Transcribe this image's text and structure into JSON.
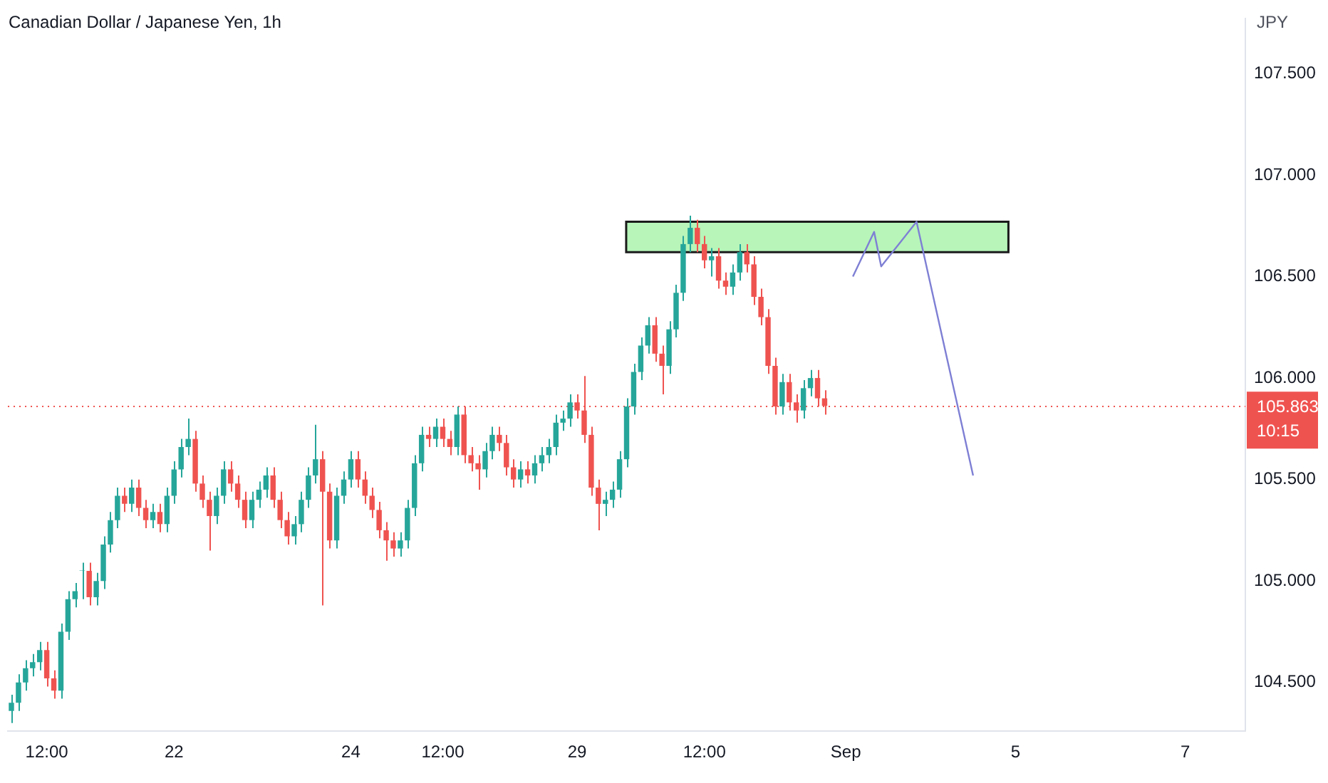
{
  "chart_data": {
    "type": "candlestick",
    "title": "Canadian Dollar / Japanese Yen, 1h",
    "ylabel": "JPY",
    "categories": [
      null,
      null,
      null,
      null,
      null,
      "12:00",
      null,
      null,
      null,
      null,
      null,
      null,
      null,
      null,
      null,
      null,
      null,
      null,
      null,
      null,
      null,
      null,
      null,
      "22",
      null,
      null,
      null,
      null,
      null,
      null,
      null,
      null,
      null,
      null,
      null,
      null,
      null,
      null,
      null,
      null,
      null,
      null,
      null,
      null,
      null,
      null,
      null,
      null,
      "24",
      null,
      null,
      null,
      null,
      null,
      null,
      null,
      null,
      null,
      null,
      null,
      null,
      "12:00",
      null,
      null,
      null,
      null,
      null,
      null,
      null,
      null,
      null,
      null,
      null,
      null,
      null,
      null,
      null,
      null,
      null,
      null,
      "29",
      null,
      null,
      null,
      null,
      null,
      null,
      null,
      null,
      null,
      null,
      null,
      null,
      null,
      null,
      null,
      null,
      null,
      "12:00",
      null,
      null,
      null,
      null,
      null,
      null,
      null,
      null,
      null,
      null,
      null,
      null,
      null,
      null,
      null,
      null,
      null,
      null,
      null,
      "Sep",
      null,
      null,
      null,
      null,
      null,
      null,
      null,
      null,
      null,
      null,
      null,
      null,
      null,
      null,
      null,
      null,
      null,
      null,
      null,
      null,
      null,
      null,
      null,
      "5",
      null,
      null,
      null,
      null,
      null,
      null,
      null,
      null,
      null,
      null,
      null,
      null,
      null,
      null,
      null,
      null,
      null,
      null,
      null,
      null,
      null,
      null,
      null,
      "7",
      null,
      null,
      null,
      null,
      null,
      null,
      null,
      null
    ],
    "ohlc": [
      [
        104.36,
        104.44,
        104.3,
        104.4
      ],
      [
        104.4,
        104.54,
        104.36,
        104.5
      ],
      [
        104.5,
        104.61,
        104.46,
        104.57
      ],
      [
        104.57,
        104.64,
        104.53,
        104.6
      ],
      [
        104.6,
        104.7,
        104.56,
        104.66
      ],
      [
        104.66,
        104.7,
        104.48,
        104.52
      ],
      [
        104.52,
        104.56,
        104.42,
        104.46
      ],
      [
        104.46,
        104.79,
        104.42,
        104.75
      ],
      [
        104.75,
        104.95,
        104.71,
        104.91
      ],
      [
        104.91,
        104.99,
        104.87,
        104.95
      ],
      [
        105.05,
        105.09,
        104.91,
        105.05
      ],
      [
        105.05,
        105.09,
        104.88,
        104.92
      ],
      [
        104.92,
        105.04,
        104.88,
        105.0
      ],
      [
        105.0,
        105.22,
        104.96,
        105.18
      ],
      [
        105.18,
        105.34,
        105.14,
        105.3
      ],
      [
        105.3,
        105.46,
        105.26,
        105.42
      ],
      [
        105.42,
        105.46,
        105.34,
        105.38
      ],
      [
        105.38,
        105.5,
        105.34,
        105.46
      ],
      [
        105.46,
        105.5,
        105.32,
        105.36
      ],
      [
        105.36,
        105.4,
        105.26,
        105.3
      ],
      [
        105.3,
        105.38,
        105.26,
        105.34
      ],
      [
        105.34,
        105.38,
        105.24,
        105.28
      ],
      [
        105.28,
        105.46,
        105.24,
        105.42
      ],
      [
        105.42,
        105.59,
        105.38,
        105.55
      ],
      [
        105.55,
        105.7,
        105.51,
        105.66
      ],
      [
        105.66,
        105.8,
        105.62,
        105.7
      ],
      [
        105.7,
        105.74,
        105.44,
        105.48
      ],
      [
        105.48,
        105.52,
        105.36,
        105.4
      ],
      [
        105.4,
        105.44,
        105.15,
        105.32
      ],
      [
        105.32,
        105.46,
        105.28,
        105.42
      ],
      [
        105.42,
        105.59,
        105.38,
        105.55
      ],
      [
        105.55,
        105.59,
        105.44,
        105.48
      ],
      [
        105.48,
        105.52,
        105.36,
        105.4
      ],
      [
        105.4,
        105.44,
        105.26,
        105.3
      ],
      [
        105.3,
        105.44,
        105.26,
        105.4
      ],
      [
        105.4,
        105.49,
        105.36,
        105.45
      ],
      [
        105.45,
        105.56,
        105.41,
        105.52
      ],
      [
        105.52,
        105.56,
        105.36,
        105.4
      ],
      [
        105.4,
        105.44,
        105.26,
        105.3
      ],
      [
        105.3,
        105.34,
        105.18,
        105.22
      ],
      [
        105.22,
        105.32,
        105.18,
        105.28
      ],
      [
        105.28,
        105.44,
        105.24,
        105.4
      ],
      [
        105.4,
        105.56,
        105.36,
        105.52
      ],
      [
        105.52,
        105.77,
        105.48,
        105.6
      ],
      [
        105.6,
        105.64,
        104.88,
        105.44
      ],
      [
        105.44,
        105.48,
        105.16,
        105.2
      ],
      [
        105.2,
        105.46,
        105.16,
        105.42
      ],
      [
        105.42,
        105.54,
        105.38,
        105.5
      ],
      [
        105.5,
        105.64,
        105.46,
        105.6
      ],
      [
        105.6,
        105.64,
        105.46,
        105.5
      ],
      [
        105.5,
        105.54,
        105.38,
        105.42
      ],
      [
        105.42,
        105.46,
        105.31,
        105.35
      ],
      [
        105.35,
        105.39,
        105.21,
        105.25
      ],
      [
        105.25,
        105.29,
        105.1,
        105.2
      ],
      [
        105.2,
        105.24,
        105.12,
        105.16
      ],
      [
        105.16,
        105.24,
        105.12,
        105.2
      ],
      [
        105.2,
        105.4,
        105.16,
        105.36
      ],
      [
        105.36,
        105.62,
        105.32,
        105.58
      ],
      [
        105.58,
        105.76,
        105.54,
        105.72
      ],
      [
        105.72,
        105.76,
        105.66,
        105.7
      ],
      [
        105.7,
        105.8,
        105.66,
        105.76
      ],
      [
        105.76,
        105.8,
        105.66,
        105.7
      ],
      [
        105.7,
        105.74,
        105.62,
        105.66
      ],
      [
        105.66,
        105.86,
        105.62,
        105.82
      ],
      [
        105.82,
        105.86,
        105.58,
        105.62
      ],
      [
        105.62,
        105.66,
        105.54,
        105.58
      ],
      [
        105.58,
        105.62,
        105.45,
        105.55
      ],
      [
        105.55,
        105.68,
        105.51,
        105.64
      ],
      [
        105.64,
        105.76,
        105.6,
        105.72
      ],
      [
        105.72,
        105.76,
        105.64,
        105.68
      ],
      [
        105.68,
        105.72,
        105.52,
        105.56
      ],
      [
        105.56,
        105.6,
        105.46,
        105.5
      ],
      [
        105.5,
        105.59,
        105.46,
        105.55
      ],
      [
        105.55,
        105.59,
        105.48,
        105.52
      ],
      [
        105.52,
        105.62,
        105.48,
        105.58
      ],
      [
        105.58,
        105.66,
        105.54,
        105.62
      ],
      [
        105.62,
        105.7,
        105.58,
        105.66
      ],
      [
        105.66,
        105.82,
        105.62,
        105.78
      ],
      [
        105.78,
        105.84,
        105.74,
        105.8
      ],
      [
        105.8,
        105.92,
        105.76,
        105.88
      ],
      [
        105.88,
        105.92,
        105.8,
        105.84
      ],
      [
        105.84,
        106.01,
        105.68,
        105.72
      ],
      [
        105.72,
        105.76,
        105.42,
        105.46
      ],
      [
        105.46,
        105.5,
        105.25,
        105.38
      ],
      [
        105.38,
        105.44,
        105.32,
        105.4
      ],
      [
        105.4,
        105.49,
        105.36,
        105.45
      ],
      [
        105.45,
        105.64,
        105.41,
        105.6
      ],
      [
        105.6,
        105.9,
        105.56,
        105.86
      ],
      [
        105.86,
        106.07,
        105.82,
        106.03
      ],
      [
        106.03,
        106.2,
        105.99,
        106.16
      ],
      [
        106.16,
        106.3,
        106.12,
        106.26
      ],
      [
        106.26,
        106.3,
        106.08,
        106.12
      ],
      [
        106.12,
        106.16,
        105.92,
        106.06
      ],
      [
        106.06,
        106.28,
        106.02,
        106.24
      ],
      [
        106.24,
        106.46,
        106.2,
        106.42
      ],
      [
        106.42,
        106.7,
        106.38,
        106.66
      ],
      [
        106.66,
        106.8,
        106.62,
        106.74
      ],
      [
        106.74,
        106.78,
        106.62,
        106.66
      ],
      [
        106.66,
        106.7,
        106.54,
        106.58
      ],
      [
        106.58,
        106.64,
        106.5,
        106.6
      ],
      [
        106.6,
        106.64,
        106.44,
        106.48
      ],
      [
        106.48,
        106.52,
        106.41,
        106.45
      ],
      [
        106.45,
        106.56,
        106.41,
        106.52
      ],
      [
        106.52,
        106.66,
        106.48,
        106.62
      ],
      [
        106.62,
        106.66,
        106.52,
        106.56
      ],
      [
        106.56,
        106.6,
        106.36,
        106.4
      ],
      [
        106.4,
        106.44,
        106.26,
        106.3
      ],
      [
        106.3,
        106.34,
        106.02,
        106.06
      ],
      [
        106.06,
        106.1,
        105.82,
        105.86
      ],
      [
        105.86,
        106.02,
        105.82,
        105.98
      ],
      [
        105.98,
        106.02,
        105.84,
        105.88
      ],
      [
        105.88,
        105.92,
        105.78,
        105.84
      ],
      [
        105.84,
        105.99,
        105.8,
        105.95
      ],
      [
        105.95,
        106.04,
        105.91,
        106.0
      ],
      [
        106.0,
        106.04,
        105.86,
        105.9
      ],
      [
        105.9,
        105.94,
        105.82,
        105.863
      ],
      null,
      null,
      null,
      null,
      null,
      null,
      null,
      null,
      null,
      null,
      null,
      null,
      null,
      null,
      null,
      null,
      null,
      null,
      null,
      null,
      null,
      null,
      null,
      null,
      null,
      null,
      null,
      null,
      null,
      null,
      null,
      null,
      null,
      null,
      null,
      null,
      null,
      null,
      null,
      null,
      null,
      null,
      null,
      null,
      null,
      null,
      null,
      null,
      null,
      null,
      null,
      null,
      null,
      null,
      null,
      null,
      null,
      null,
      null
    ],
    "series": [
      {
        "type": "line",
        "color": "#7e7fd4",
        "values": [
          null,
          null,
          null,
          null,
          null,
          null,
          null,
          null,
          null,
          null,
          null,
          null,
          null,
          null,
          null,
          null,
          null,
          null,
          null,
          null,
          null,
          null,
          null,
          null,
          null,
          null,
          null,
          null,
          null,
          null,
          null,
          null,
          null,
          null,
          null,
          null,
          null,
          null,
          null,
          null,
          null,
          null,
          null,
          null,
          null,
          null,
          null,
          null,
          null,
          null,
          null,
          null,
          null,
          null,
          null,
          null,
          null,
          null,
          null,
          null,
          null,
          null,
          null,
          null,
          null,
          null,
          null,
          null,
          null,
          null,
          null,
          null,
          null,
          null,
          null,
          null,
          null,
          null,
          null,
          null,
          null,
          null,
          null,
          null,
          null,
          null,
          null,
          null,
          null,
          null,
          null,
          null,
          null,
          null,
          null,
          null,
          null,
          null,
          null,
          null,
          null,
          null,
          null,
          null,
          null,
          null,
          null,
          null,
          null,
          null,
          null,
          null,
          null,
          null,
          null,
          null,
          null,
          null,
          null,
          106.5,
          null,
          null,
          106.72,
          106.55,
          null,
          null,
          null,
          null,
          106.77,
          null,
          null,
          null,
          null,
          null,
          null,
          null,
          105.52,
          null,
          null,
          null,
          null,
          null,
          null,
          null,
          null,
          null,
          null,
          null,
          null,
          null,
          null,
          null,
          null,
          null,
          null,
          null,
          null,
          null,
          null,
          null,
          null,
          null,
          null,
          null,
          null,
          null,
          null,
          null,
          null,
          null,
          null,
          null,
          null,
          null,
          null
        ]
      }
    ],
    "ylim": [
      104.26,
      107.77
    ],
    "yticks": [
      {
        "value": 104.5,
        "label": "104.500"
      },
      {
        "value": 105,
        "label": "105.000"
      },
      {
        "value": 105.5,
        "label": "105.500"
      },
      {
        "value": 106,
        "label": "106.000"
      },
      {
        "value": 106.5,
        "label": "106.500"
      },
      {
        "value": 107,
        "label": "107.000"
      },
      {
        "value": 107.5,
        "label": "107.500"
      }
    ],
    "ref_lines": [
      {
        "axis": "y",
        "value": 105.863,
        "label": "105.863\n10:15",
        "color": "#ef5350",
        "line_style": "dotted"
      }
    ],
    "bands": [
      {
        "axis": "y",
        "from": 106.62,
        "to": 106.77,
        "color": "#b7f5b9"
      }
    ],
    "marker": "none",
    "line_style": "solid",
    "grid": false,
    "legend": false
  }
}
